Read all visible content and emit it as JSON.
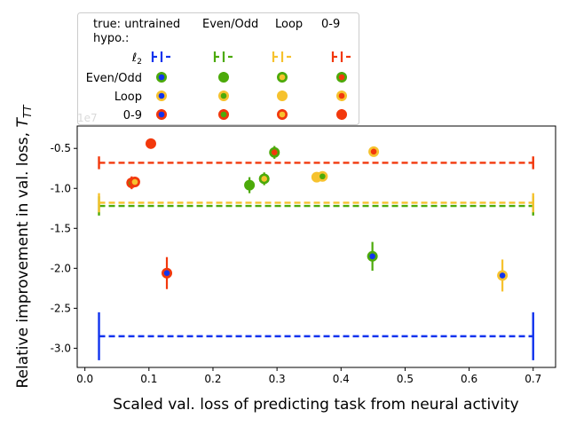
{
  "chart_data": {
    "type": "scatter",
    "xlabel": "Scaled val. loss of predicting task from neural activity",
    "ylabel": "Relative improvement in val. loss, T_TT",
    "y_multiplier": "1e7",
    "xlim": [
      -0.012,
      0.735
    ],
    "ylim": [
      -3.24,
      -0.22
    ],
    "xticks": [
      0.0,
      0.1,
      0.2,
      0.3,
      0.4,
      0.5,
      0.6,
      0.7
    ],
    "yticks": [
      -0.5,
      -1.0,
      -1.5,
      -2.0,
      -2.5,
      -3.0
    ],
    "colors": {
      "l2": "#1133ee",
      "Even/Odd": "#4caa0a",
      "Loop": "#f6c22e",
      "0-9": "#f2380c"
    },
    "legend": {
      "col_title": "true: untrained",
      "row_title": "hypo.:",
      "columns": [
        "ℓ2",
        "Even/Odd",
        "Loop",
        "0-9"
      ],
      "rows": [
        "Even/Odd",
        "Loop",
        "0-9"
      ],
      "header_labels": [
        "Even/Odd",
        "Loop",
        "0-9"
      ]
    },
    "baselines": [
      {
        "hypo": "l2",
        "value": -2.85,
        "err": 0.3
      },
      {
        "hypo": "Even/Odd",
        "value": -1.22,
        "err": 0.12
      },
      {
        "hypo": "Loop",
        "value": -1.18,
        "err": 0.12
      },
      {
        "hypo": "0-9",
        "value": -0.68,
        "err": 0.08
      }
    ],
    "baseline_x": [
      0.022,
      0.7
    ],
    "points": [
      {
        "true": "0-9",
        "hypo": "0-9",
        "x": 0.103,
        "y": -0.44,
        "err": 0.04
      },
      {
        "true": "Even/Odd",
        "hypo": "0-9",
        "x": 0.073,
        "y": -0.93,
        "err": 0.08
      },
      {
        "true": "Loop",
        "hypo": "0-9",
        "x": 0.078,
        "y": -0.92,
        "err": 0.05
      },
      {
        "true": "l2",
        "hypo": "0-9",
        "x": 0.128,
        "y": -2.06,
        "err": 0.2
      },
      {
        "true": "0-9",
        "hypo": "Even/Odd",
        "x": 0.296,
        "y": -0.55,
        "err": 0.08
      },
      {
        "true": "Even/Odd",
        "hypo": "Even/Odd",
        "x": 0.257,
        "y": -0.96,
        "err": 0.1
      },
      {
        "true": "Loop",
        "hypo": "Even/Odd",
        "x": 0.28,
        "y": -0.88,
        "err": 0.08
      },
      {
        "true": "l2",
        "hypo": "Even/Odd",
        "x": 0.449,
        "y": -1.85,
        "err": 0.18
      },
      {
        "true": "Loop",
        "hypo": "Loop",
        "x": 0.362,
        "y": -0.86,
        "err": 0.04
      },
      {
        "true": "Even/Odd",
        "hypo": "Loop",
        "x": 0.371,
        "y": -0.85,
        "err": 0.04
      },
      {
        "true": "0-9",
        "hypo": "Loop",
        "x": 0.451,
        "y": -0.54,
        "err": 0.04
      },
      {
        "true": "l2",
        "hypo": "Loop",
        "x": 0.652,
        "y": -2.09,
        "err": 0.2
      }
    ]
  }
}
